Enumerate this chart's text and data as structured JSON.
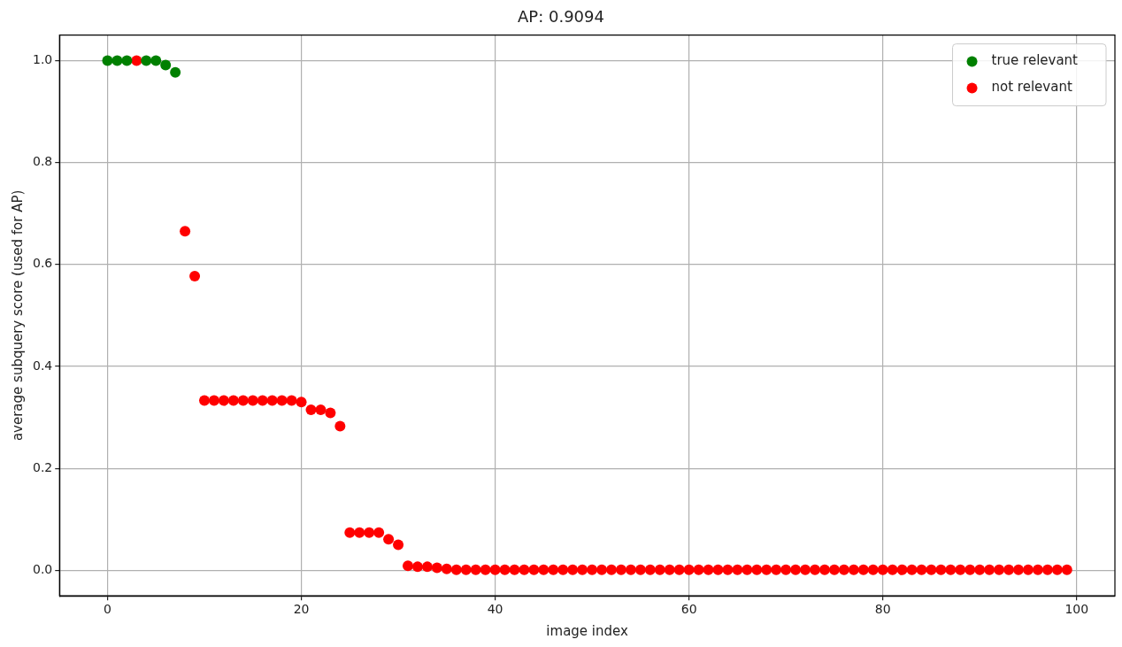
{
  "chart_data": {
    "type": "scatter",
    "title": "AP: 0.9094",
    "xlabel": "image index",
    "ylabel": "average subquery score (used for AP)",
    "xlim": [
      -4.95,
      103.95
    ],
    "ylim": [
      -0.05,
      1.05
    ],
    "xticks": [
      0,
      20,
      40,
      60,
      80,
      100
    ],
    "yticks": [
      {
        "value": 0,
        "label": "0.0"
      },
      {
        "value": 0.2,
        "label": "0.2"
      },
      {
        "value": 0.4,
        "label": "0.4"
      },
      {
        "value": 0.6,
        "label": "0.6"
      },
      {
        "value": 0.8,
        "label": "0.8"
      },
      {
        "value": 1,
        "label": "1.0"
      }
    ],
    "grid": true,
    "legend": "top right",
    "marker": "circle",
    "series": [
      {
        "name": "true relevant",
        "color": "#008000",
        "x": [
          0,
          1,
          2,
          4,
          5,
          6,
          7
        ],
        "values": [
          1,
          1,
          1,
          1,
          1,
          0.991,
          0.977
        ]
      },
      {
        "name": "not relevant",
        "color": "#ff0000",
        "x": [
          3,
          8,
          9,
          10,
          11,
          12,
          13,
          14,
          15,
          16,
          17,
          18,
          19,
          20,
          21,
          22,
          23,
          24,
          25,
          26,
          27,
          28,
          29,
          30,
          31,
          32,
          33,
          34,
          35,
          36,
          37,
          38,
          39,
          40,
          41,
          42,
          43,
          44,
          45,
          46,
          47,
          48,
          49,
          50,
          51,
          52,
          53,
          54,
          55,
          56,
          57,
          58,
          59,
          60,
          61,
          62,
          63,
          64,
          65,
          66,
          67,
          68,
          69,
          70,
          71,
          72,
          73,
          74,
          75,
          76,
          77,
          78,
          79,
          80,
          81,
          82,
          83,
          84,
          85,
          86,
          87,
          88,
          89,
          90,
          91,
          92,
          93,
          94,
          95,
          96,
          97,
          98,
          99
        ],
        "values": [
          1,
          0.665,
          0.577,
          0.333,
          0.333,
          0.333,
          0.333,
          0.333,
          0.333,
          0.333,
          0.333,
          0.333,
          0.333,
          0.33,
          0.315,
          0.315,
          0.309,
          0.283,
          0.074,
          0.074,
          0.074,
          0.074,
          0.061,
          0.05,
          0.009,
          0.007,
          0.007,
          0.005,
          0.003,
          0.001,
          0.001,
          0.001,
          0.001,
          0.001,
          0.001,
          0.001,
          0.001,
          0.001,
          0.001,
          0.001,
          0.001,
          0.001,
          0.001,
          0.001,
          0.001,
          0.001,
          0.001,
          0.001,
          0.001,
          0.001,
          0.001,
          0.001,
          0.001,
          0.001,
          0.001,
          0.001,
          0.001,
          0.001,
          0.001,
          0.001,
          0.001,
          0.001,
          0.001,
          0.001,
          0.001,
          0.001,
          0.001,
          0.001,
          0.001,
          0.001,
          0.001,
          0.001,
          0.001,
          0.001,
          0.001,
          0.001,
          0.001,
          0.001,
          0.001,
          0.001,
          0.001,
          0.001,
          0.001,
          0.001,
          0.001,
          0.001,
          0.001,
          0.001,
          0.001,
          0.001,
          0.001,
          0.001,
          0.001
        ]
      }
    ]
  }
}
